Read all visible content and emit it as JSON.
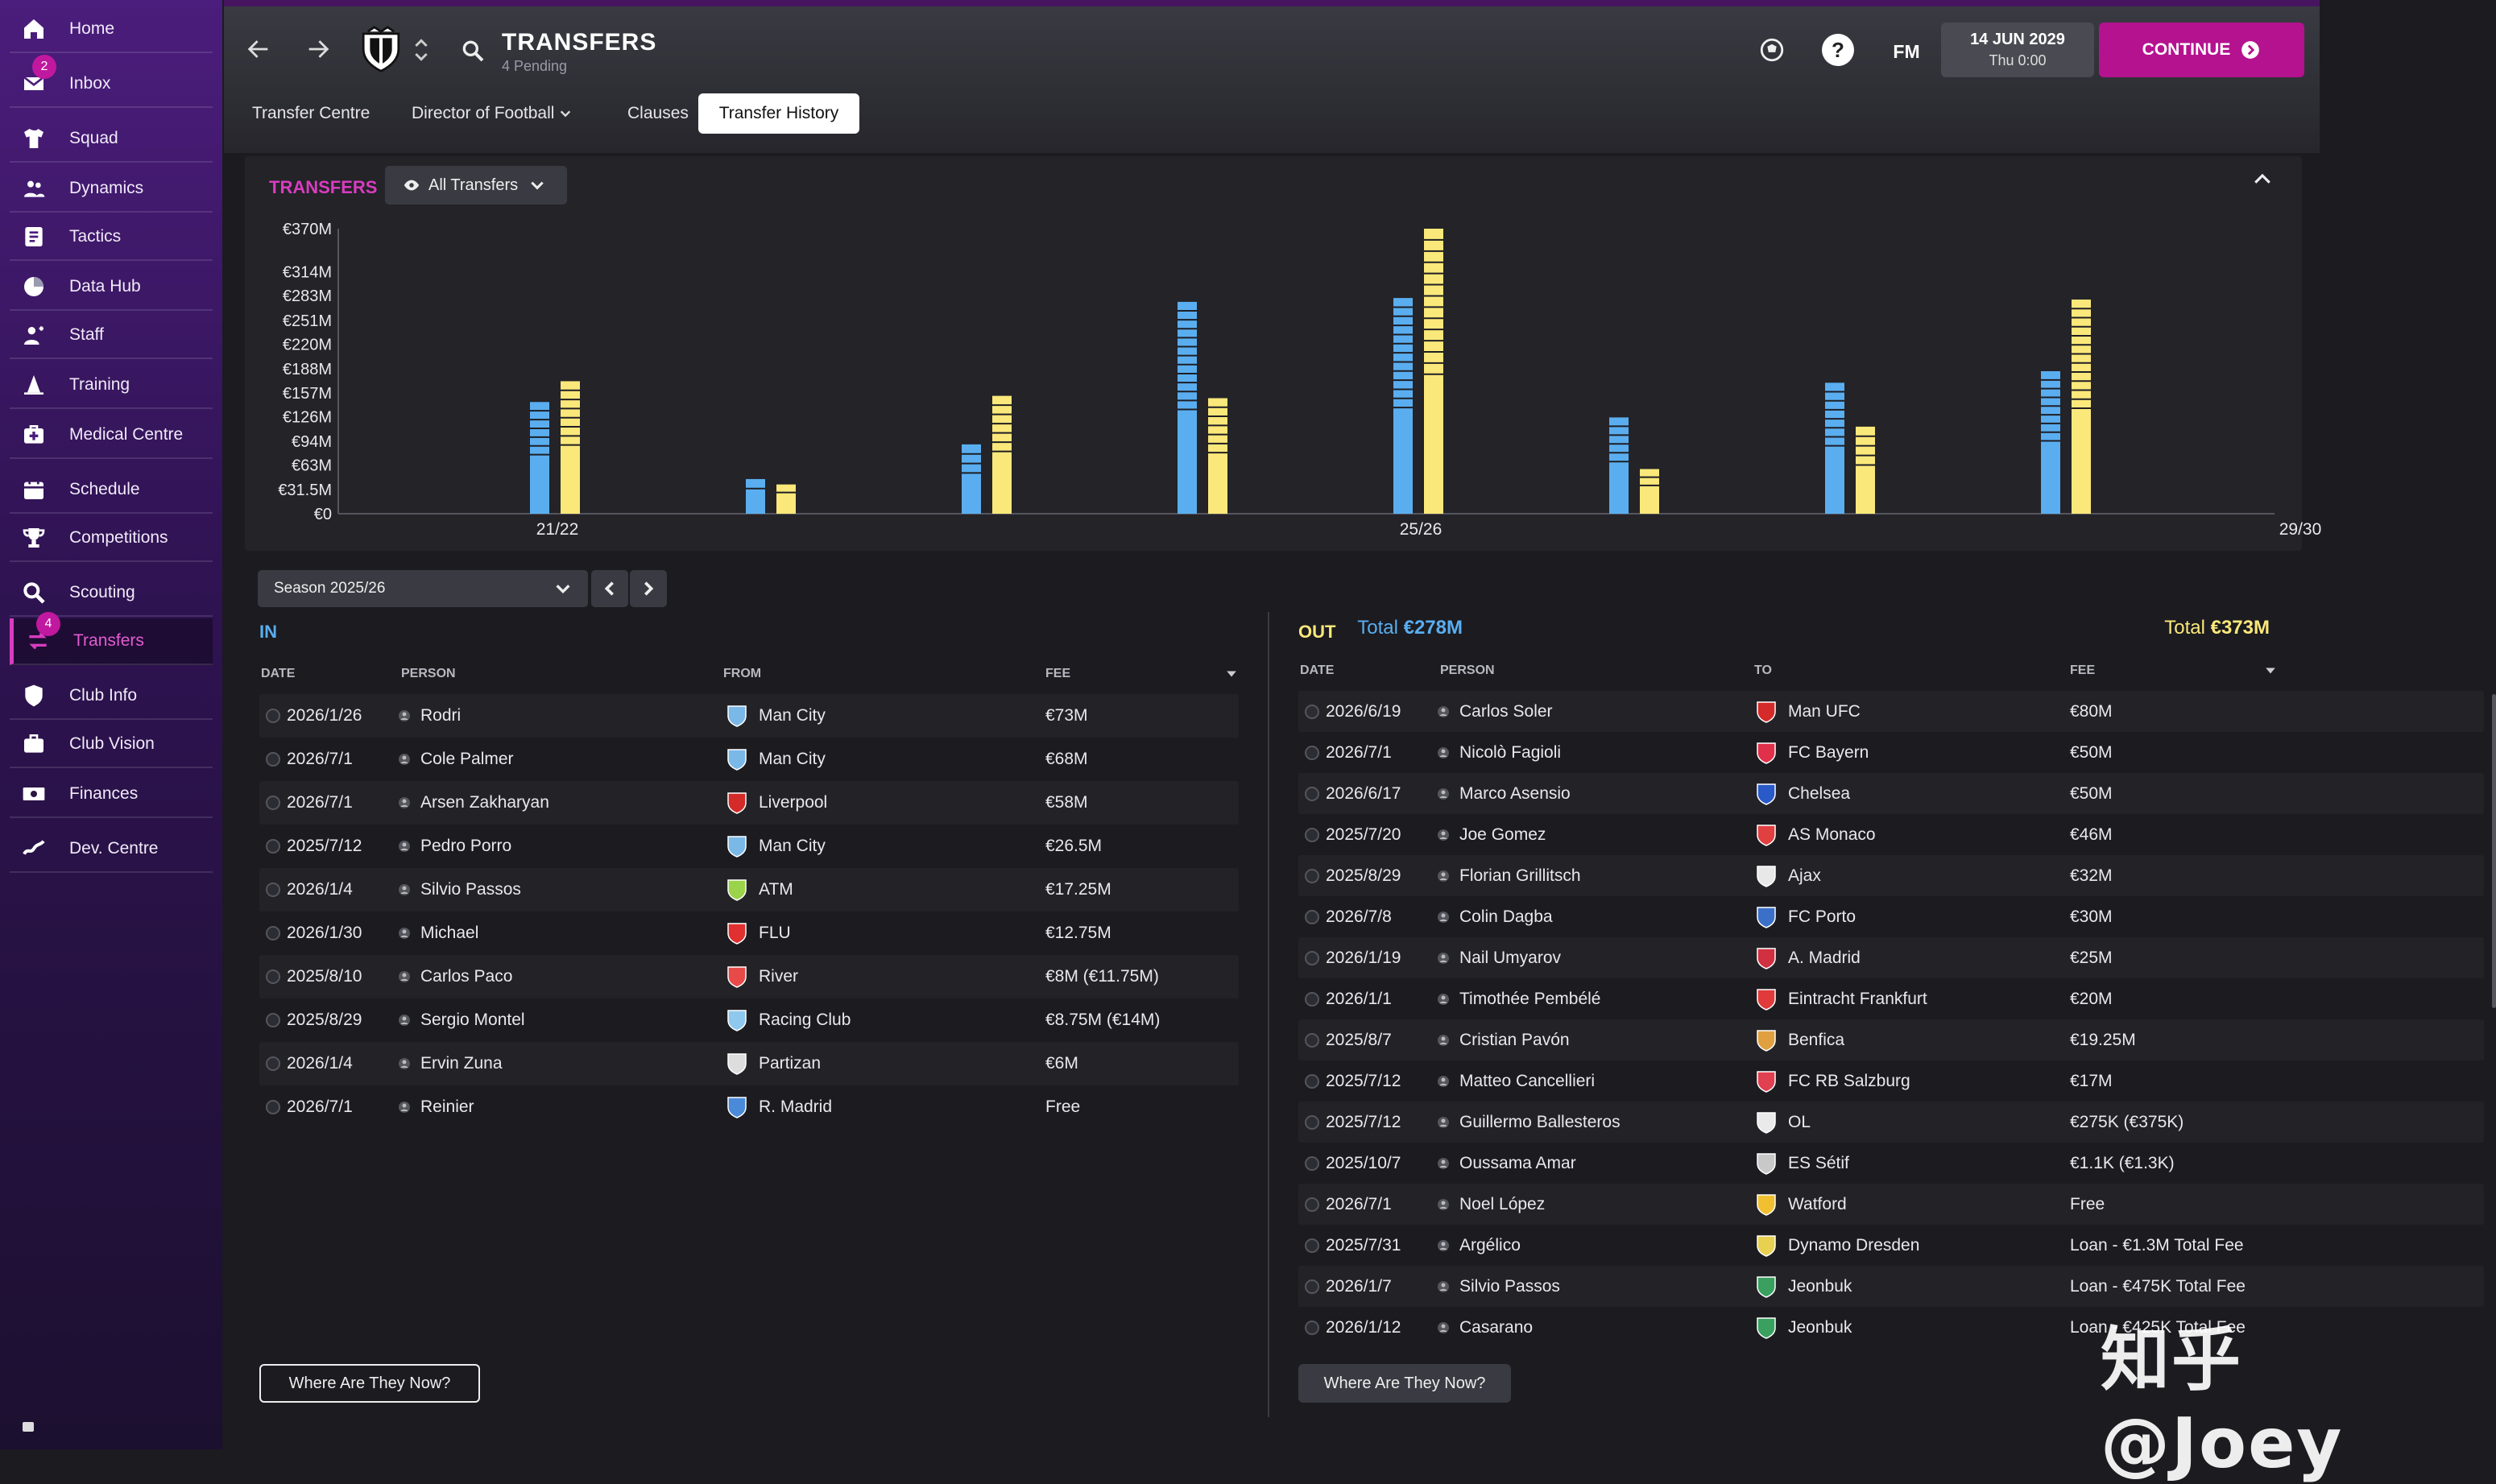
{
  "sidebar": {
    "items": [
      {
        "label": "Home",
        "icon": "home-icon",
        "badge": ""
      },
      {
        "label": "Inbox",
        "icon": "inbox-icon",
        "badge": "2"
      },
      {
        "label": "Squad",
        "icon": "shirt-icon",
        "badge": ""
      },
      {
        "label": "Dynamics",
        "icon": "people-icon",
        "badge": ""
      },
      {
        "label": "Tactics",
        "icon": "tactics-board-icon",
        "badge": ""
      },
      {
        "label": "Data Hub",
        "icon": "data-hub-icon",
        "badge": ""
      },
      {
        "label": "Staff",
        "icon": "staff-icon",
        "badge": ""
      },
      {
        "label": "Training",
        "icon": "training-cone-icon",
        "badge": ""
      },
      {
        "label": "Medical Centre",
        "icon": "medical-kit-icon",
        "badge": ""
      },
      {
        "label": "Schedule",
        "icon": "calendar-icon",
        "badge": ""
      },
      {
        "label": "Competitions",
        "icon": "trophy-icon",
        "badge": ""
      },
      {
        "label": "Scouting",
        "icon": "magnifier-icon",
        "badge": ""
      },
      {
        "label": "Transfers",
        "icon": "transfer-icon",
        "badge": "4"
      },
      {
        "label": "Club Info",
        "icon": "shield-icon",
        "badge": ""
      },
      {
        "label": "Club Vision",
        "icon": "briefcase-icon",
        "badge": ""
      },
      {
        "label": "Finances",
        "icon": "money-icon",
        "badge": ""
      },
      {
        "label": "Dev. Centre",
        "icon": "dev-centre-icon",
        "badge": ""
      }
    ],
    "active": "Transfers"
  },
  "header": {
    "title": "TRANSFERS",
    "subtitle": "4 Pending",
    "tabs": [
      "Transfer Centre",
      "Director of Football",
      "Clauses",
      "Transfer History"
    ],
    "active_tab": "Transfer History",
    "fm_label": "FM",
    "date_main": "14 JUN 2029",
    "date_sub": "Thu 0:00",
    "continue_label": "CONTINUE"
  },
  "filter": {
    "label": "All Transfers"
  },
  "chart_data": {
    "type": "bar",
    "title": "TRANSFERS",
    "ylabel": "",
    "xlabel": "",
    "y_ticks": [
      "€0",
      "€31.5M",
      "€63M",
      "€94M",
      "€126M",
      "€157M",
      "€188M",
      "€220M",
      "€251M",
      "€283M",
      "€314M",
      "€370M"
    ],
    "y_tick_values": [
      0,
      31.5,
      63,
      94,
      126,
      157,
      188,
      220,
      251,
      283,
      314,
      370
    ],
    "x_tick_labels": [
      "21/22",
      "25/26",
      "29/30"
    ],
    "ylim": [
      0,
      370
    ],
    "grid": false,
    "series": [
      {
        "values": [
          145,
          45,
          90,
          275,
          280,
          125,
          170,
          185
        ]
      },
      {
        "values": [
          172,
          38,
          153,
          150,
          370,
          58,
          113,
          278
        ]
      }
    ],
    "colors": {
      "in": "#5aaef0",
      "out": "#fbe87a"
    }
  },
  "season": {
    "label": "Season 2025/26"
  },
  "in_section": {
    "label": "IN",
    "total_label": "Total",
    "total_value": "€278M",
    "columns": [
      "DATE",
      "PERSON",
      "FROM",
      "FEE"
    ],
    "rows": [
      {
        "date": "2026/1/26",
        "person": "Rodri",
        "club": "Man City",
        "fee": "€73M",
        "crest": "#7ab8e8"
      },
      {
        "date": "2026/7/1",
        "person": "Cole Palmer",
        "club": "Man City",
        "fee": "€68M",
        "crest": "#7ab8e8"
      },
      {
        "date": "2026/7/1",
        "person": "Arsen Zakharyan",
        "club": "Liverpool",
        "fee": "€58M",
        "crest": "#d42a2a"
      },
      {
        "date": "2025/7/12",
        "person": "Pedro Porro",
        "club": "Man City",
        "fee": "€26.5M",
        "crest": "#7ab8e8"
      },
      {
        "date": "2026/1/4",
        "person": "Silvio Passos",
        "club": "ATM",
        "fee": "€17.25M",
        "crest": "#9bd34a"
      },
      {
        "date": "2026/1/30",
        "person": "Michael",
        "club": "FLU",
        "fee": "€12.75M",
        "crest": "#e03030"
      },
      {
        "date": "2025/8/10",
        "person": "Carlos Paco",
        "club": "River",
        "fee": "€8M (€11.75M)",
        "crest": "#e84a4a"
      },
      {
        "date": "2025/8/29",
        "person": "Sergio Montel",
        "club": "Racing Club",
        "fee": "€8.75M (€14M)",
        "crest": "#8ec8ec"
      },
      {
        "date": "2026/1/4",
        "person": "Ervin Zuna",
        "club": "Partizan",
        "fee": "€6M",
        "crest": "#dddddd"
      },
      {
        "date": "2026/7/1",
        "person": "Reinier",
        "club": "R. Madrid",
        "fee": "Free",
        "crest": "#4a8ad8"
      }
    ],
    "where_button": "Where Are They Now?"
  },
  "out_section": {
    "label": "OUT",
    "total_label": "Total",
    "total_value": "€373M",
    "columns": [
      "DATE",
      "PERSON",
      "TO",
      "FEE"
    ],
    "rows": [
      {
        "date": "2026/6/19",
        "person": "Carlos Soler",
        "club": "Man UFC",
        "fee": "€80M",
        "crest": "#d42a2a"
      },
      {
        "date": "2026/7/1",
        "person": "Nicolò Fagioli",
        "club": "FC Bayern",
        "fee": "€50M",
        "crest": "#e0304a"
      },
      {
        "date": "2026/6/17",
        "person": "Marco Asensio",
        "club": "Chelsea",
        "fee": "€50M",
        "crest": "#2a5ac8"
      },
      {
        "date": "2025/7/20",
        "person": "Joe Gomez",
        "club": "AS Monaco",
        "fee": "€46M",
        "crest": "#e04040"
      },
      {
        "date": "2025/8/29",
        "person": "Florian Grillitsch",
        "club": "Ajax",
        "fee": "€32M",
        "crest": "#e8e8e8"
      },
      {
        "date": "2026/7/8",
        "person": "Colin Dagba",
        "club": "FC Porto",
        "fee": "€30M",
        "crest": "#3a70c8"
      },
      {
        "date": "2026/1/19",
        "person": "Nail Umyarov",
        "club": "A. Madrid",
        "fee": "€25M",
        "crest": "#d03040"
      },
      {
        "date": "2026/1/1",
        "person": "Timothée Pembélé",
        "club": "Eintracht Frankfurt",
        "fee": "€20M",
        "crest": "#e03a3a"
      },
      {
        "date": "2025/8/7",
        "person": "Cristian Pavón",
        "club": "Benfica",
        "fee": "€19.25M",
        "crest": "#e0a040"
      },
      {
        "date": "2025/7/12",
        "person": "Matteo Cancellieri",
        "club": "FC RB Salzburg",
        "fee": "€17M",
        "crest": "#e04050"
      },
      {
        "date": "2025/7/12",
        "person": "Guillermo Ballesteros",
        "club": "OL",
        "fee": "€275K (€375K)",
        "crest": "#eaeaea"
      },
      {
        "date": "2025/10/7",
        "person": "Oussama Amar",
        "club": "ES Sétif",
        "fee": "€1.1K (€1.3K)",
        "crest": "#c8c8c8"
      },
      {
        "date": "2026/7/1",
        "person": "Noel López",
        "club": "Watford",
        "fee": "Free",
        "crest": "#f0c030"
      },
      {
        "date": "2025/7/31",
        "person": "Argélico",
        "club": "Dynamo Dresden",
        "fee": "Loan - €1.3M Total Fee",
        "crest": "#e8d050"
      },
      {
        "date": "2026/1/7",
        "person": "Silvio Passos",
        "club": "Jeonbuk",
        "fee": "Loan - €475K Total Fee",
        "crest": "#3aa060"
      },
      {
        "date": "2026/1/12",
        "person": "Casarano",
        "club": "Jeonbuk",
        "fee": "Loan - €425K Total Fee",
        "crest": "#3aa060"
      }
    ],
    "where_button": "Where Are They Now?"
  },
  "watermark": "知乎 @Joey"
}
